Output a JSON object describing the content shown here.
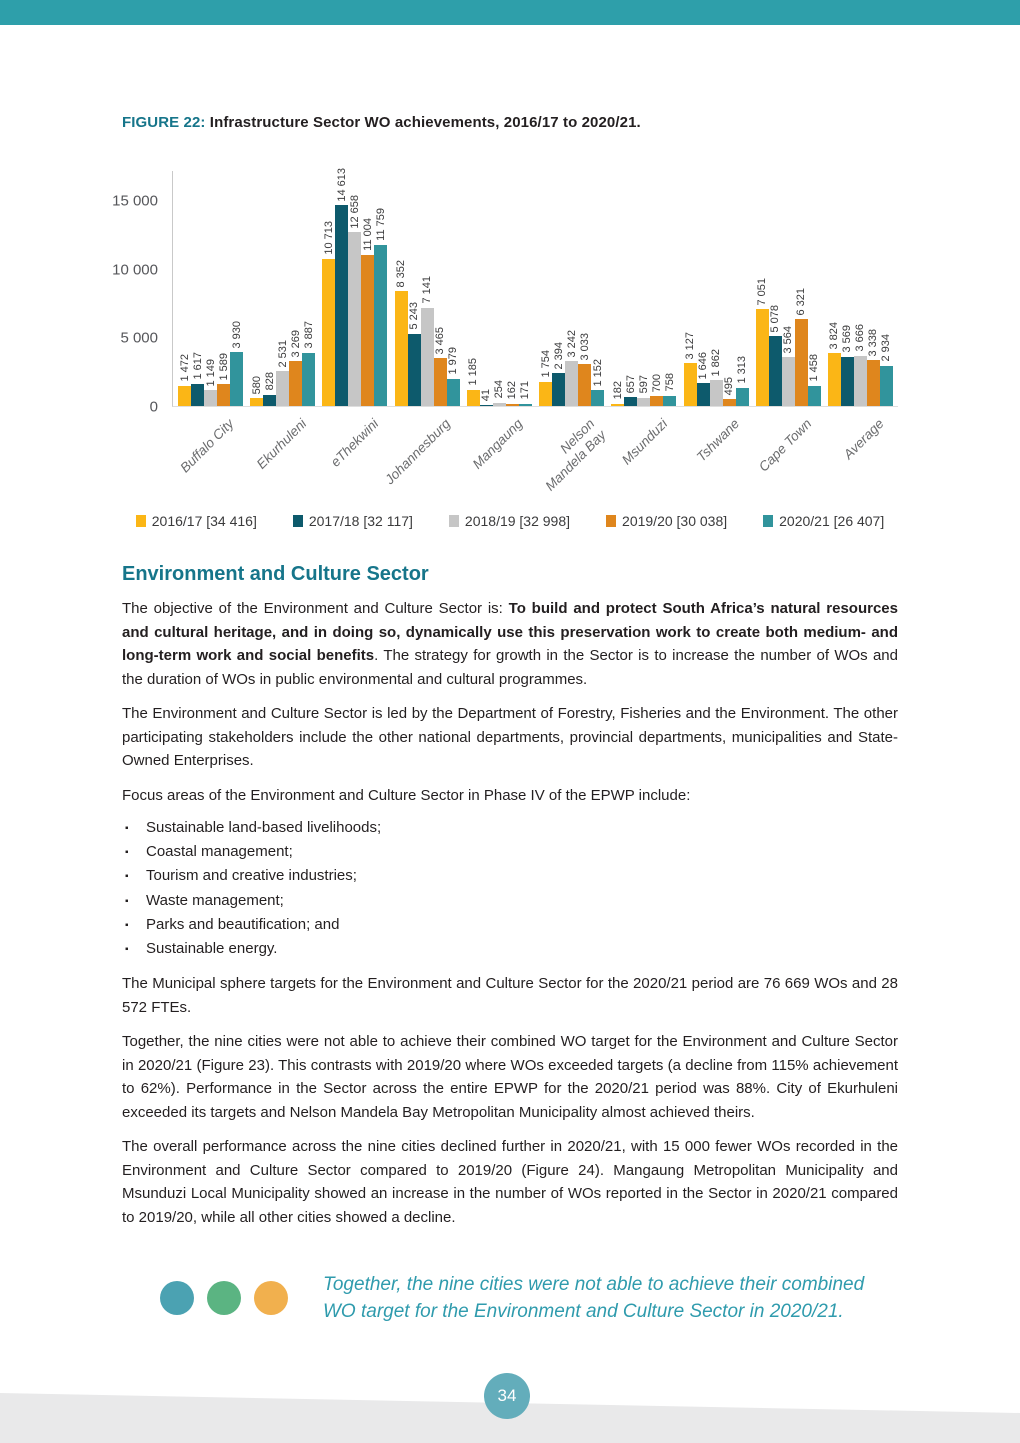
{
  "page": {
    "page_number": "34"
  },
  "figure": {
    "label": "FIGURE 22:",
    "title": "Infrastructure Sector WO achievements, 2016/17 to 2020/21."
  },
  "chart_data": {
    "type": "bar",
    "title": "Infrastructure Sector WO achievements, 2016/17 to 2020/21.",
    "categories": [
      "Buffalo City",
      "Ekurhuleni",
      "eThekwini",
      "Johannesburg",
      "Mangaung",
      "Nelson Mandela Bay",
      "Msunduzi",
      "Tshwane",
      "Cape Town",
      "Average"
    ],
    "category_display": [
      [
        "Buffalo City"
      ],
      [
        "Ekurhuleni"
      ],
      [
        "eThekwini"
      ],
      [
        "Johannesburg"
      ],
      [
        "Mangaung"
      ],
      [
        "Nelson",
        "Mandela Bay"
      ],
      [
        "Msunduzi"
      ],
      [
        "Tshwane"
      ],
      [
        "Cape Town"
      ],
      [
        "Average"
      ]
    ],
    "series": [
      {
        "name": "2016/17 [34 416]",
        "color": "#FBB616",
        "values": [
          1472,
          580,
          10713,
          8352,
          1185,
          1754,
          182,
          3127,
          7051,
          3824
        ]
      },
      {
        "name": "2017/18 [32 117]",
        "color": "#0D5A6C",
        "values": [
          1617,
          828,
          14613,
          5243,
          41,
          2394,
          657,
          1646,
          5078,
          3569
        ]
      },
      {
        "name": "2018/19 [32 998]",
        "color": "#C6C6C6",
        "values": [
          1149,
          2531,
          12658,
          7141,
          254,
          3242,
          597,
          1862,
          3564,
          3666
        ]
      },
      {
        "name": "2019/20 [30 038]",
        "color": "#DF861D",
        "values": [
          1589,
          3269,
          11004,
          3465,
          162,
          3033,
          700,
          495,
          6321,
          3338
        ]
      },
      {
        "name": "2020/21 [26 407]",
        "color": "#31949C",
        "values": [
          3930,
          3887,
          11759,
          1979,
          171,
          1152,
          758,
          1313,
          1458,
          2934
        ]
      }
    ],
    "ylim": [
      0,
      15000
    ],
    "yticks": [
      {
        "label": "0",
        "value": 0
      },
      {
        "label": "5 000",
        "value": 5000
      },
      {
        "label": "10 000",
        "value": 10000
      },
      {
        "label": "15 000",
        "value": 15000
      }
    ],
    "grid": false,
    "legend_position": "bottom",
    "value_labels": "rotated-90-above-bars"
  },
  "section": {
    "heading": "Environment and Culture Sector",
    "p1_pre": "The objective of the Environment and Culture Sector is: ",
    "p1_bold": "To build and protect South Africa’s natural resources and cultural heritage, and in doing so, dynamically use this preservation work to create both medium- and long-term work and social benefits",
    "p1_post": ". The strategy for growth in the Sector is to increase the number of WOs and the duration of WOs in public environmental and cultural programmes.",
    "p2": "The Environment and Culture Sector is led by the Department of Forestry, Fisheries and the Environment. The other participating stakeholders include the other national departments, provincial departments, municipalities and State-Owned Enterprises.",
    "p3": "Focus areas of the Environment and Culture Sector in Phase IV of the EPWP include:",
    "bullets": [
      "Sustainable land-based livelihoods;",
      "Coastal management;",
      "Tourism and creative industries;",
      "Waste management;",
      "Parks and beautification; and",
      "Sustainable energy."
    ],
    "p4": "The Municipal sphere targets for the Environment and Culture Sector for the 2020/21 period are 76 669 WOs and 28 572 FTEs.",
    "p5": "Together, the nine cities were not able to achieve their combined WO target for the Environment and Culture Sector in 2020/21 (Figure 23). This contrasts with 2019/20 where WOs exceeded targets (a decline from 115% achievement to 62%). Performance in the Sector across the entire EPWP for the 2020/21 period was 88%. City of Ekurhuleni exceeded its targets and Nelson Mandela Bay Metropolitan Municipality almost achieved theirs.",
    "p6": "The overall performance across the nine cities declined further in 2020/21, with 15 000 fewer WOs recorded in the Environment and Culture Sector compared to 2019/20 (Figure 24). Mangaung Metropolitan Municipality and Msunduzi Local Municipality showed an increase in the number of WOs reported in the Sector in 2020/21 compared to 2019/20, while all other cities showed a decline."
  },
  "callout": {
    "text": "Together, the nine cities were not able to achieve their combined WO target for the Environment and Culture Sector in 2020/21.",
    "dot_colors": [
      "#4BA2B2",
      "#5BB482",
      "#F1B04E"
    ]
  },
  "theme": {
    "top_bar": "#2E9FAA",
    "heading_teal": "#16758A",
    "callout_teal": "#2F9BAD",
    "body_text": "#231F20",
    "footer_band": "#E9E9EA",
    "page_circle": "#63ADBB"
  }
}
